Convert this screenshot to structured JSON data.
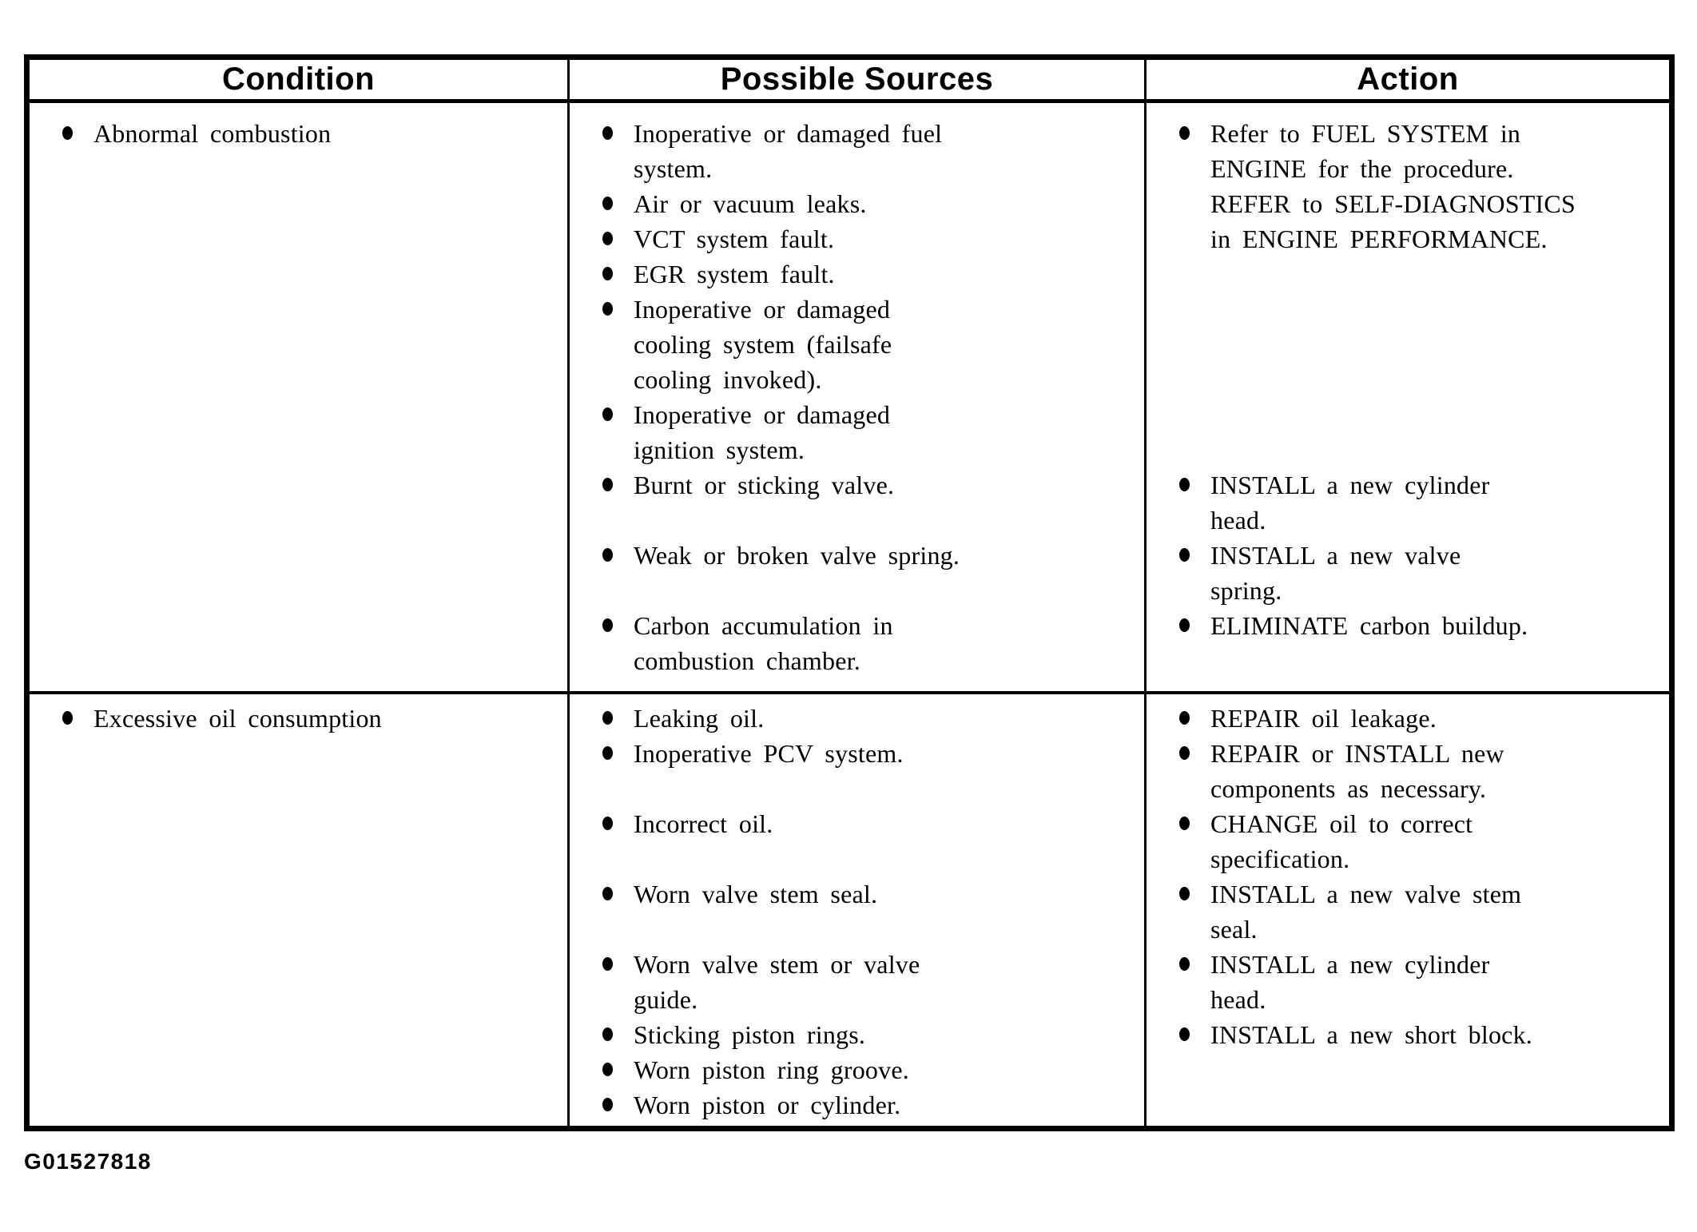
{
  "figure_code": "G01527818",
  "colors": {
    "ink": "#000000",
    "paper": "#ffffff"
  },
  "table": {
    "headers": [
      "Condition",
      "Possible Sources",
      "Action"
    ],
    "rows": [
      {
        "condition": "Abnormal combustion",
        "sources": [
          "Inoperative or damaged fuel\nsystem.",
          "Air or vacuum leaks.",
          "VCT system fault.",
          "EGR system fault.",
          "Inoperative or damaged\ncooling system (failsafe\ncooling invoked).",
          "Inoperative or damaged\nignition system.",
          "Burnt or sticking valve.",
          "Weak or broken valve spring.",
          "Carbon accumulation in\ncombustion chamber."
        ],
        "actions": [
          "Refer to FUEL SYSTEM in\nENGINE for the procedure.\nREFER to SELF-DIAGNOSTICS\nin ENGINE PERFORMANCE.",
          "INSTALL a new cylinder\nhead.",
          "INSTALL a new valve\nspring.",
          "ELIMINATE carbon buildup."
        ]
      },
      {
        "condition": "Excessive oil consumption",
        "sources": [
          "Leaking oil.",
          "Inoperative PCV system.",
          "Incorrect oil.",
          "Worn valve stem seal.",
          "Worn valve stem or valve\nguide.",
          "Sticking piston rings.",
          "Worn piston ring groove.",
          "Worn piston or cylinder."
        ],
        "actions": [
          "REPAIR oil leakage.",
          "REPAIR or INSTALL new\ncomponents as necessary.",
          "CHANGE oil to correct\nspecification.",
          "INSTALL a new valve stem\nseal.",
          "INSTALL a new cylinder\nhead.",
          "INSTALL a new short block."
        ]
      }
    ]
  }
}
